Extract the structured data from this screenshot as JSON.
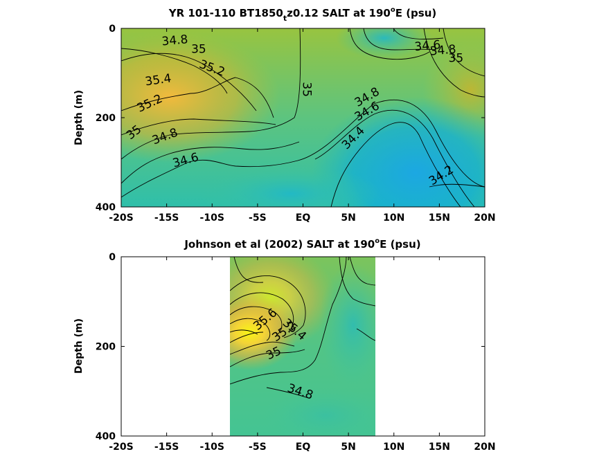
{
  "chart_data": [
    {
      "type": "heatmap",
      "title": "YR 101-110 BT1850_tz0.12 SALT at 190°E (psu)",
      "title_parts": {
        "pre": "YR 101-110 BT1850",
        "sub": "t",
        "post": "z0.12 SALT at 190",
        "sup": "o",
        "tail": "E (psu)"
      },
      "ylabel": "Depth (m)",
      "xlim": [
        -20,
        20
      ],
      "ylim": [
        0,
        400
      ],
      "y_reversed": true,
      "xticks": [
        -20,
        -15,
        -10,
        -5,
        0,
        5,
        10,
        15,
        20
      ],
      "xtick_labels": [
        "-20S",
        "-15S",
        "-10S",
        "-5S",
        "EQ",
        "5N",
        "10N",
        "15N",
        "20N"
      ],
      "yticks": [
        0,
        200,
        400
      ],
      "ytick_labels": [
        "0",
        "200",
        "400"
      ],
      "colormap": "parula",
      "contour_labels": [
        {
          "text": "34.8",
          "x": -15.5,
          "y": 38,
          "angle": -5
        },
        {
          "text": "35",
          "x": -12.3,
          "y": 55,
          "angle": 0
        },
        {
          "text": "35.2",
          "x": -11.5,
          "y": 87,
          "angle": 20
        },
        {
          "text": "35.4",
          "x": -17.3,
          "y": 128,
          "angle": -8
        },
        {
          "text": "35.2",
          "x": -18.0,
          "y": 188,
          "angle": -25
        },
        {
          "text": "35",
          "x": -19.0,
          "y": 250,
          "angle": -38
        },
        {
          "text": "34.8",
          "x": -16.4,
          "y": 260,
          "angle": -20
        },
        {
          "text": "34.6",
          "x": -14.2,
          "y": 311,
          "angle": -15
        },
        {
          "text": "35",
          "x": 0.0,
          "y": 120,
          "angle": 90
        },
        {
          "text": "34.8",
          "x": 6.0,
          "y": 176,
          "angle": -30
        },
        {
          "text": "34.6",
          "x": 6.0,
          "y": 208,
          "angle": -30
        },
        {
          "text": "34.4",
          "x": 4.8,
          "y": 272,
          "angle": -45
        },
        {
          "text": "34.6",
          "x": 12.3,
          "y": 50,
          "angle": -5
        },
        {
          "text": "34.8",
          "x": 14.0,
          "y": 60,
          "angle": -5
        },
        {
          "text": "35",
          "x": 16.0,
          "y": 75,
          "angle": 0
        },
        {
          "text": "34.2",
          "x": 14.2,
          "y": 352,
          "angle": -32
        }
      ]
    },
    {
      "type": "heatmap",
      "title": "Johnson et al (2002) SALT at 190°E (psu)",
      "title_parts": {
        "pre": "Johnson et al (2002) SALT at 190",
        "sup": "o",
        "tail": "E (psu)"
      },
      "ylabel": "Depth (m)",
      "xlim": [
        -20,
        20
      ],
      "ylim": [
        0,
        400
      ],
      "y_reversed": true,
      "data_xrange": [
        -8,
        8
      ],
      "xticks": [
        -20,
        -15,
        -10,
        -5,
        0,
        5,
        10,
        15,
        20
      ],
      "xtick_labels": [
        "-20S",
        "-15S",
        "-10S",
        "-5S",
        "EQ",
        "5N",
        "10N",
        "15N",
        "20N"
      ],
      "yticks": [
        0,
        200,
        400
      ],
      "ytick_labels": [
        "0",
        "200",
        "400"
      ],
      "colormap": "parula",
      "contour_labels": [
        {
          "text": "35.6",
          "x": -5.0,
          "y": 165,
          "angle": -40
        },
        {
          "text": "35.4",
          "x": -2.3,
          "y": 150,
          "angle": 40
        },
        {
          "text": "35.2",
          "x": -3.0,
          "y": 190,
          "angle": -35
        },
        {
          "text": "35",
          "x": -3.8,
          "y": 230,
          "angle": -25
        },
        {
          "text": "34.8",
          "x": -1.8,
          "y": 300,
          "angle": 18
        }
      ]
    }
  ]
}
